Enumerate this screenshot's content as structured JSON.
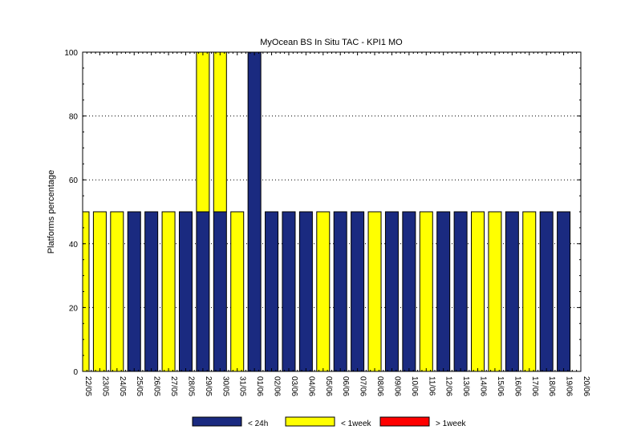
{
  "chart_data": {
    "type": "bar",
    "title": "MyOcean  BS In Situ TAC - KPI1  MO",
    "ylabel": "Platforms percentage",
    "xlabel": "",
    "ylim": [
      0,
      100
    ],
    "yticks": [
      0,
      20,
      40,
      60,
      80,
      100
    ],
    "grid": "horizontal dotted",
    "legend_position": "bottom",
    "categories": [
      "22/05",
      "23/05",
      "24/05",
      "25/05",
      "26/05",
      "27/05",
      "28/05",
      "29/05",
      "30/05",
      "31/05",
      "01/06",
      "02/06",
      "03/06",
      "04/06",
      "05/06",
      "06/06",
      "07/06",
      "08/06",
      "09/06",
      "10/06",
      "11/06",
      "12/06",
      "13/06",
      "14/06",
      "15/06",
      "16/06",
      "17/06",
      "18/06",
      "19/06",
      "20/06"
    ],
    "series": [
      {
        "name": "< 24h",
        "color": "#1a2a80",
        "values": [
          0,
          0,
          0,
          50,
          50,
          0,
          50,
          50,
          50,
          0,
          100,
          50,
          50,
          50,
          0,
          50,
          50,
          0,
          50,
          50,
          0,
          50,
          50,
          0,
          0,
          50,
          0,
          50,
          50,
          0
        ]
      },
      {
        "name": "< 1week",
        "color": "#ffff00",
        "values": [
          50,
          50,
          50,
          0,
          0,
          50,
          0,
          50,
          50,
          50,
          0,
          0,
          0,
          0,
          50,
          0,
          0,
          50,
          0,
          0,
          50,
          0,
          0,
          50,
          50,
          0,
          50,
          0,
          0,
          0
        ]
      },
      {
        "name": "> 1week",
        "color": "#ff0000",
        "values": [
          0,
          0,
          0,
          0,
          0,
          0,
          0,
          0,
          0,
          0,
          0,
          0,
          0,
          0,
          0,
          0,
          0,
          0,
          0,
          0,
          0,
          0,
          0,
          0,
          0,
          0,
          0,
          0,
          0,
          0
        ]
      }
    ]
  }
}
